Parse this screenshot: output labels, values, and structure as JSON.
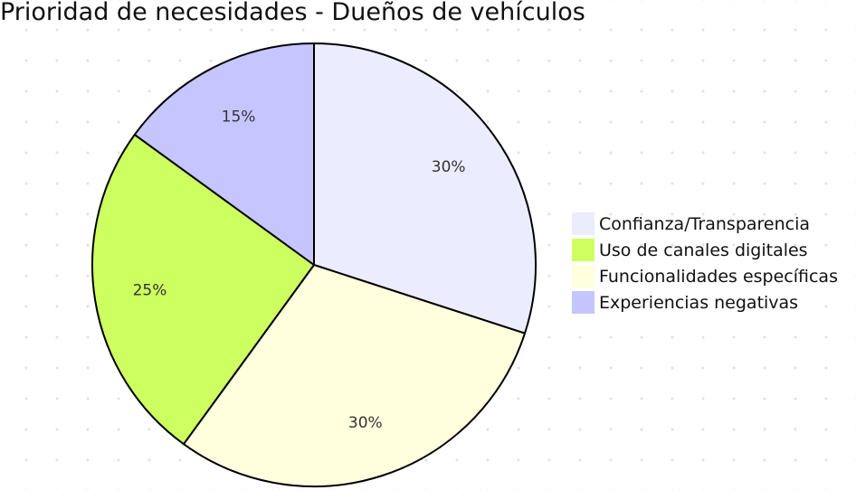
{
  "chart_data": {
    "type": "pie",
    "title": "Prioridad de necesidades - Dueños de vehículos",
    "categories": [
      "Confianza/Transparencia",
      "Funcionalidades específicas",
      "Uso de canales digitales",
      "Experiencias negativas"
    ],
    "values": [
      30,
      30,
      25,
      15
    ],
    "slice_labels": [
      "30%",
      "30%",
      "25%",
      "15%"
    ],
    "colors": [
      "#ECECFF",
      "#FFFFDE",
      "#CDFF60",
      "#C6C6FF"
    ],
    "legend_position": "right",
    "legend": [
      {
        "label": "Confianza/Transparencia",
        "color": "#ECECFF"
      },
      {
        "label": "Uso de canales digitales",
        "color": "#CDFF60"
      },
      {
        "label": "Funcionalidades específicas",
        "color": "#FFFFDE"
      },
      {
        "label": "Experiencias negativas",
        "color": "#C6C6FF"
      }
    ]
  }
}
